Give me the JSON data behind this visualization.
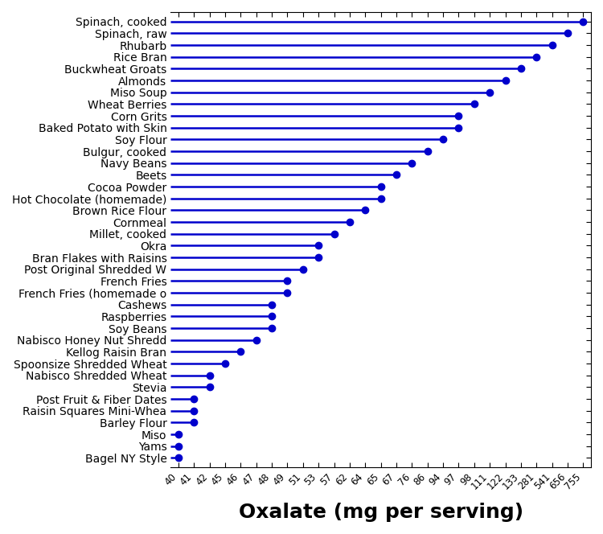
{
  "foods": [
    "Spinach, cooked",
    "Spinach, raw",
    "Rhubarb",
    "Rice Bran",
    "Buckwheat Groats",
    "Almonds",
    "Miso Soup",
    "Wheat Berries",
    "Corn Grits",
    "Baked Potato with Skin",
    "Soy Flour",
    "Bulgur, cooked",
    "Navy Beans",
    "Beets",
    "Cocoa Powder",
    "Hot Chocolate (homemade)",
    "Brown Rice Flour",
    "Cornmeal",
    "Millet, cooked",
    "Okra",
    "Bran Flakes with Raisins",
    "Post Original Shredded W",
    "French Fries",
    "French Fries (homemade o",
    "Cashews",
    "Raspberries",
    "Soy Beans",
    "Nabisco Honey Nut Shredd",
    "Kellog Raisin Bran",
    "Spoonsize Shredded Wheat",
    "Nabisco Shredded Wheat",
    "Stevia",
    "Post Fruit & Fiber Dates",
    "Raisin Squares Mini-Whea",
    "Barley Flour",
    "Miso",
    "Yams",
    "Bagel NY Style"
  ],
  "values": [
    755,
    656,
    541,
    281,
    133,
    122,
    111,
    98,
    97,
    97,
    94,
    86,
    76,
    67,
    65,
    65,
    64,
    62,
    57,
    53,
    53,
    51,
    49,
    49,
    48,
    48,
    48,
    47,
    46,
    45,
    42,
    42,
    41,
    41,
    41,
    40,
    40,
    40
  ],
  "x_ticks": [
    40,
    41,
    42,
    45,
    46,
    47,
    48,
    49,
    51,
    53,
    57,
    62,
    64,
    65,
    67,
    76,
    86,
    94,
    97,
    98,
    111,
    122,
    133,
    281,
    541,
    656,
    755
  ],
  "dot_color": "#0000cc",
  "line_color": "#0000cc",
  "xlabel": "Oxalate (mg per serving)",
  "xlabel_fontsize": 18,
  "tick_fontsize": 8.5,
  "label_fontsize": 10
}
